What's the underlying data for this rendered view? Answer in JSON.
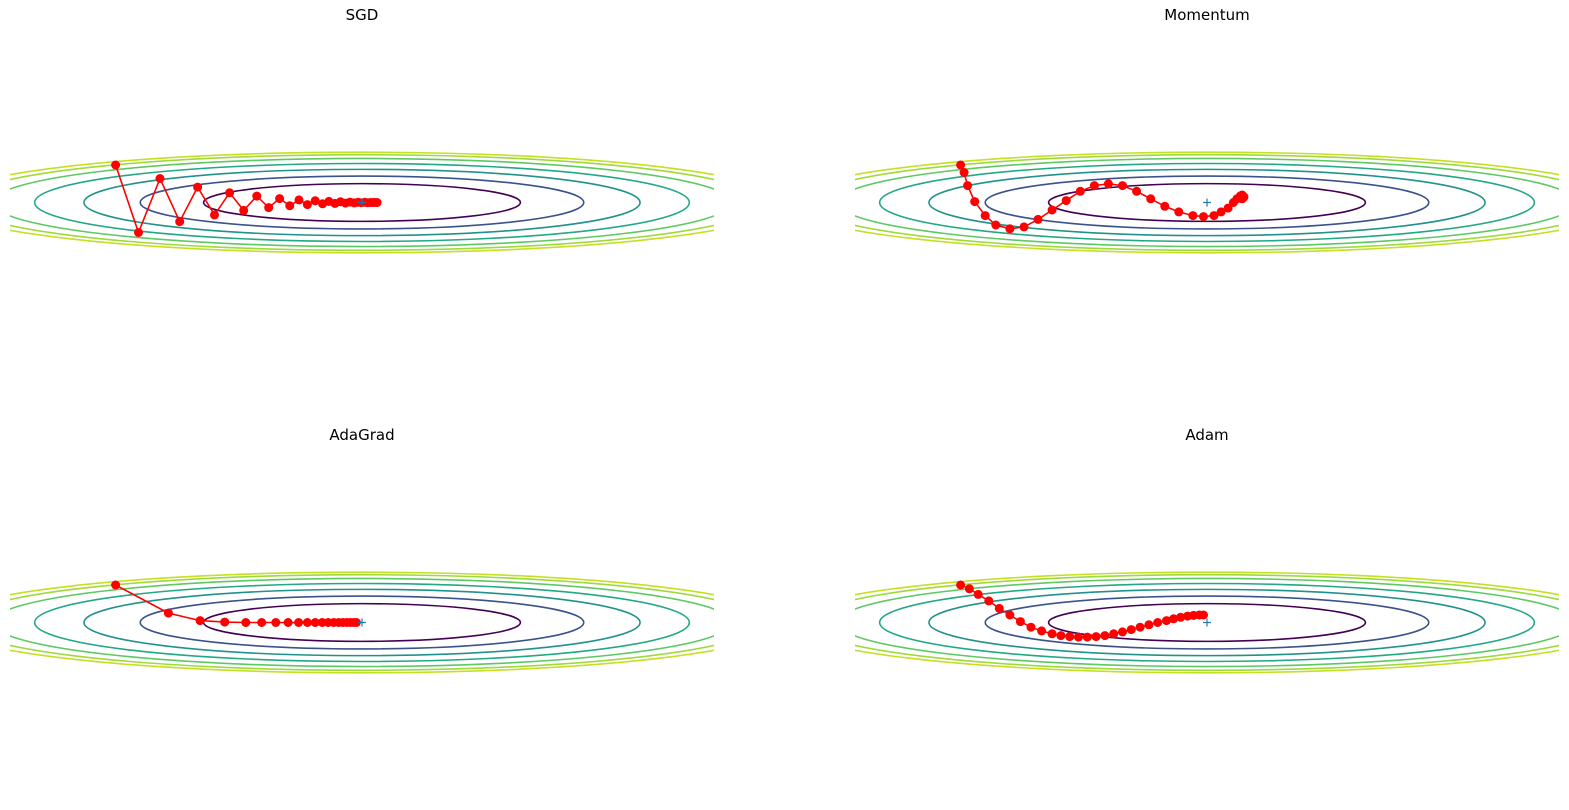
{
  "figure": {
    "charts": [
      {
        "title": "SGD"
      },
      {
        "title": "Momentum"
      },
      {
        "title": "AdaGrad"
      },
      {
        "title": "Adam"
      }
    ]
  },
  "chart_data": [
    {
      "type": "line",
      "title": "SGD",
      "xlim": [
        -10,
        10
      ],
      "ylim": [
        -10,
        10
      ],
      "axes_visible": false,
      "grid": false,
      "contour_levels_count": 7,
      "contour_colors": [
        "#440154",
        "#3b528b",
        "#21918c",
        "#5ec962",
        "#fde725"
      ],
      "minimum_marker": {
        "x": 0,
        "y": 0,
        "color": "#1f77b4",
        "symbol": "+"
      },
      "path_color": "#ff0000",
      "path": {
        "x": [
          -7.0,
          -6.35,
          -5.74,
          -5.18,
          -4.67,
          -4.19,
          -3.76,
          -3.36,
          -2.99,
          -2.65,
          -2.34,
          -2.05,
          -1.79,
          -1.55,
          -1.33,
          -1.12,
          -0.94,
          -0.77,
          -0.61,
          -0.47,
          -0.34,
          -0.22,
          -0.11,
          -0.01,
          0.08,
          0.16,
          0.24,
          0.31,
          0.37,
          0.43
        ],
        "y": [
          2.0,
          -1.6,
          1.28,
          -1.02,
          0.82,
          -0.66,
          0.52,
          -0.42,
          0.34,
          -0.27,
          0.21,
          -0.17,
          0.14,
          -0.11,
          0.09,
          -0.07,
          0.06,
          -0.05,
          0.04,
          -0.03,
          0.02,
          -0.02,
          0.01,
          -0.01,
          0.01,
          -0.01,
          0.0,
          0.0,
          0.0,
          0.0
        ]
      }
    },
    {
      "type": "line",
      "title": "Momentum",
      "xlim": [
        -10,
        10
      ],
      "ylim": [
        -10,
        10
      ],
      "axes_visible": false,
      "grid": false,
      "contour_levels_count": 7,
      "contour_colors": [
        "#440154",
        "#3b528b",
        "#21918c",
        "#5ec962",
        "#fde725"
      ],
      "minimum_marker": {
        "x": 0,
        "y": 0,
        "color": "#1f77b4",
        "symbol": "+"
      },
      "path_color": "#ff0000",
      "path": {
        "x": [
          -7.0,
          -6.9,
          -6.8,
          -6.6,
          -6.3,
          -6.0,
          -5.6,
          -5.2,
          -4.8,
          -4.4,
          -4.0,
          -3.6,
          -3.2,
          -2.8,
          -2.4,
          -2.0,
          -1.6,
          -1.2,
          -0.8,
          -0.4,
          -0.1,
          0.2,
          0.4,
          0.6,
          0.75,
          0.85,
          0.95,
          1.0,
          1.05,
          1.0
        ],
        "y": [
          2.0,
          1.6,
          0.9,
          0.05,
          -0.7,
          -1.2,
          -1.4,
          -1.3,
          -0.9,
          -0.4,
          0.1,
          0.6,
          0.9,
          1.0,
          0.9,
          0.6,
          0.2,
          -0.2,
          -0.5,
          -0.7,
          -0.75,
          -0.7,
          -0.5,
          -0.3,
          0.0,
          0.2,
          0.35,
          0.4,
          0.3,
          0.2
        ]
      }
    },
    {
      "type": "line",
      "title": "AdaGrad",
      "xlim": [
        -10,
        10
      ],
      "ylim": [
        -10,
        10
      ],
      "axes_visible": false,
      "grid": false,
      "contour_levels_count": 7,
      "contour_colors": [
        "#440154",
        "#3b528b",
        "#21918c",
        "#5ec962",
        "#fde725"
      ],
      "minimum_marker": {
        "x": 0,
        "y": 0,
        "color": "#1f77b4",
        "symbol": "+"
      },
      "path_color": "#ff0000",
      "path": {
        "x": [
          -7.0,
          -5.5,
          -4.6,
          -3.9,
          -3.3,
          -2.85,
          -2.45,
          -2.1,
          -1.8,
          -1.55,
          -1.33,
          -1.13,
          -0.96,
          -0.8,
          -0.66,
          -0.54,
          -0.43,
          -0.33,
          -0.24,
          -0.16
        ],
        "y": [
          2.0,
          0.5,
          0.1,
          0.02,
          0.0,
          0.0,
          0.0,
          0.0,
          0.0,
          0.0,
          0.0,
          0.0,
          0.0,
          0.0,
          0.0,
          0.0,
          0.0,
          0.0,
          0.0,
          0.0
        ]
      }
    },
    {
      "type": "line",
      "title": "Adam",
      "xlim": [
        -10,
        10
      ],
      "ylim": [
        -10,
        10
      ],
      "axes_visible": false,
      "grid": false,
      "contour_levels_count": 7,
      "contour_colors": [
        "#440154",
        "#3b528b",
        "#21918c",
        "#5ec962",
        "#fde725"
      ],
      "minimum_marker": {
        "x": 0,
        "y": 0,
        "color": "#1f77b4",
        "symbol": "+"
      },
      "path_color": "#ff0000",
      "path": {
        "x": [
          -7.0,
          -6.75,
          -6.5,
          -6.2,
          -5.9,
          -5.6,
          -5.3,
          -5.0,
          -4.7,
          -4.4,
          -4.15,
          -3.9,
          -3.65,
          -3.4,
          -3.15,
          -2.9,
          -2.65,
          -2.4,
          -2.15,
          -1.9,
          -1.65,
          -1.4,
          -1.15,
          -0.95,
          -0.75,
          -0.55,
          -0.38,
          -0.22,
          -0.1
        ],
        "y": [
          2.0,
          1.8,
          1.5,
          1.15,
          0.75,
          0.4,
          0.05,
          -0.25,
          -0.45,
          -0.6,
          -0.7,
          -0.75,
          -0.78,
          -0.78,
          -0.75,
          -0.7,
          -0.6,
          -0.5,
          -0.38,
          -0.25,
          -0.12,
          0.0,
          0.1,
          0.2,
          0.28,
          0.34,
          0.38,
          0.4,
          0.4
        ]
      }
    }
  ]
}
